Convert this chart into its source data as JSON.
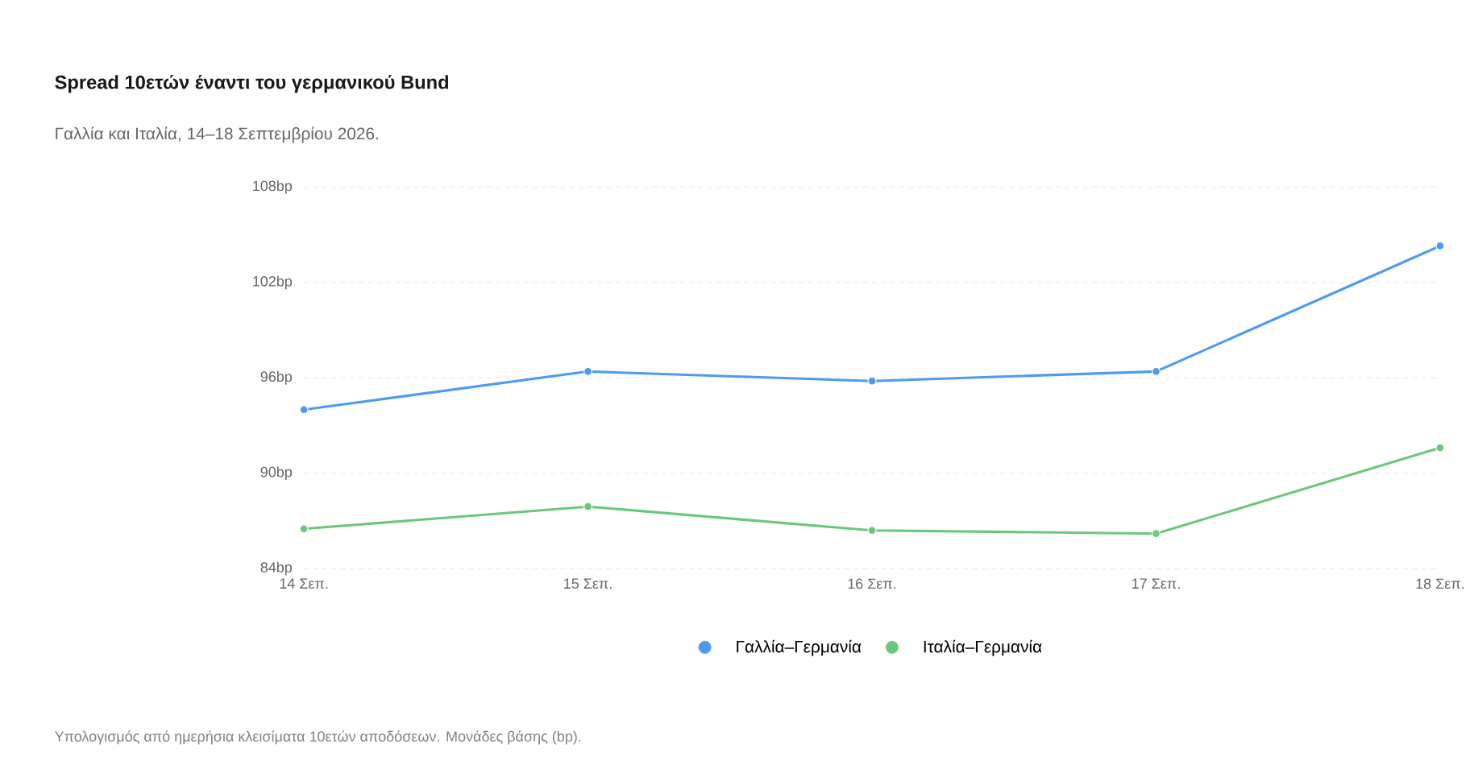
{
  "chart_data": {
    "type": "line",
    "title": "Spread 10ετών έναντι του γερμανικού Bund",
    "subtitle": "Γαλλία και Ιταλία, 14–18 Σεπτεμβρίου 2026.",
    "categories": [
      "14 Σεπ.",
      "15 Σεπ.",
      "16 Σεπ.",
      "17 Σεπ.",
      "18 Σεπ."
    ],
    "series": [
      {
        "name": "Γαλλία–Γερμανία",
        "color": "#4e9af1",
        "values": [
          94.0,
          96.4,
          95.8,
          96.4,
          104.3
        ]
      },
      {
        "name": "Ιταλία–Γερμανία",
        "color": "#6cc77e",
        "values": [
          86.5,
          87.9,
          86.4,
          86.2,
          91.6
        ]
      }
    ],
    "ylim": [
      84,
      108
    ],
    "yticks": [
      {
        "value": 84,
        "label": "84bp"
      },
      {
        "value": 90,
        "label": "90bp"
      },
      {
        "value": 96,
        "label": "96bp"
      },
      {
        "value": 102,
        "label": "102bp"
      },
      {
        "value": 108,
        "label": "108bp"
      }
    ],
    "grid": "y",
    "legend": "bottom",
    "marker": "circle",
    "line_style": "solid",
    "annotations": [
      "Υπολογισμός από ημερήσια κλεισίματα 10ετών αποδόσεων. Μονάδες βάσης (bp)."
    ]
  }
}
